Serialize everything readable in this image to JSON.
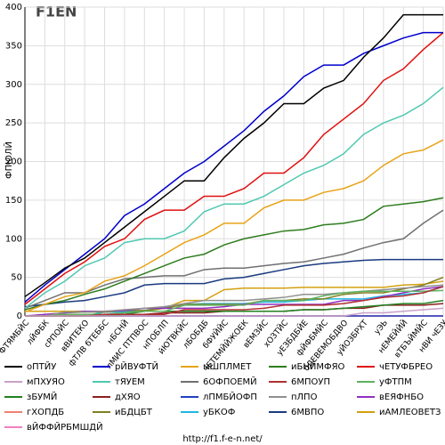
{
  "chart_data": {
    "type": "line",
    "logo": "F1EN",
    "ylabel": "ФПЮЛЙ",
    "footer": "http://f1.f-e-n.net/",
    "categories": [
      "ФТЯМБЙС",
      "лЙФБК",
      "сРПОЙС",
      "вВИТЕКО",
      "фТЛВ бТЕББС",
      "нБСНЙ",
      "лМИС ПТПВОС",
      "нПОБЛП",
      "йЮТВКЙС",
      "лБОБДБ",
      "бФУЙЙС",
      "чЕТЕМЙЙЖОЕК",
      "вЕМЗЙС",
      "хОЗТЙС",
      "уЕЗБДБЙЕ",
      "фЙФБМЙС",
      "бДЕВЕМОБДВО",
      "уЙОЗБРХТ",
      "уЭЬ",
      "нЕМЕЙЙЙ",
      "вТБЪЙМЙС",
      "нВИ чЕЗУ"
    ],
    "ylim": [
      0,
      400
    ],
    "yticks": [
      0,
      50,
      100,
      150,
      200,
      250,
      300,
      350,
      400
    ],
    "grid": true,
    "series": [
      {
        "name": "оПТЙУ",
        "color": "#000000",
        "values": [
          25,
          43,
          62,
          75,
          95,
          115,
          135,
          155,
          175,
          175,
          205,
          230,
          250,
          275,
          275,
          295,
          305,
          335,
          360,
          390,
          390,
          390
        ]
      },
      {
        "name": "рЙВУФТЙ",
        "color": "#0000cc",
        "values": [
          18,
          40,
          60,
          80,
          100,
          130,
          145,
          165,
          185,
          200,
          220,
          240,
          265,
          285,
          310,
          325,
          325,
          340,
          350,
          360,
          367,
          367
        ]
      },
      {
        "name": "мШПЛМЕТ",
        "color": "#e8a317",
        "values": [
          5,
          15,
          25,
          30,
          45,
          52,
          65,
          80,
          95,
          105,
          120,
          120,
          140,
          150,
          150,
          160,
          165,
          175,
          195,
          210,
          215,
          228
        ]
      },
      {
        "name": "иБНЙМФЯО",
        "color": "#2e7d1e",
        "values": [
          8,
          15,
          20,
          28,
          35,
          45,
          55,
          65,
          75,
          80,
          92,
          100,
          105,
          110,
          112,
          118,
          120,
          125,
          142,
          145,
          148,
          153
        ]
      },
      {
        "name": "чЕТУФБРЕО",
        "color": "#e01010",
        "values": [
          15,
          35,
          55,
          70,
          90,
          100,
          125,
          137,
          137,
          155,
          155,
          165,
          185,
          185,
          205,
          235,
          255,
          275,
          305,
          320,
          345,
          367
        ]
      },
      {
        "name": "мПХУЯО",
        "color": "#c8a0c8",
        "values": [
          0,
          0,
          0,
          0,
          0,
          0,
          0,
          0,
          0,
          0,
          0,
          0,
          0,
          0,
          0,
          0,
          0,
          4,
          4,
          6,
          8,
          10
        ]
      },
      {
        "name": "тЯУЕМ",
        "color": "#50c8b0",
        "values": [
          10,
          30,
          45,
          65,
          75,
          95,
          100,
          100,
          110,
          135,
          145,
          145,
          155,
          170,
          185,
          195,
          210,
          235,
          250,
          260,
          275,
          296
        ]
      },
      {
        "name": "6ОФПОЕМЙ",
        "color": "#707070",
        "values": [
          10,
          20,
          30,
          30,
          40,
          48,
          50,
          52,
          52,
          60,
          62,
          62,
          65,
          68,
          70,
          75,
          80,
          88,
          95,
          100,
          120,
          137
        ]
      },
      {
        "name": "6МПОУП",
        "color": "#b03030",
        "values": [
          0,
          0,
          0,
          0,
          2,
          2,
          2,
          2,
          8,
          8,
          8,
          8,
          10,
          14,
          14,
          14,
          16,
          20,
          24,
          26,
          30,
          38
        ]
      },
      {
        "name": "уФТПМ",
        "color": "#60b060",
        "values": [
          0,
          0,
          2,
          2,
          2,
          4,
          6,
          6,
          14,
          14,
          14,
          14,
          20,
          20,
          20,
          26,
          30,
          32,
          32,
          32,
          32,
          33
        ]
      },
      {
        "name": "зБУМЙ",
        "color": "#208020",
        "values": [
          0,
          0,
          0,
          0,
          0,
          2,
          6,
          6,
          6,
          6,
          6,
          6,
          6,
          6,
          8,
          8,
          10,
          12,
          14,
          16,
          16,
          20
        ]
      },
      {
        "name": "дХЯО",
        "color": "#8b2020",
        "values": [
          0,
          0,
          0,
          0,
          2,
          2,
          2,
          4,
          4,
          4,
          6,
          6,
          6,
          6,
          8,
          8,
          10,
          10,
          14,
          14,
          14,
          16
        ]
      },
      {
        "name": "лПМБЙОФП",
        "color": "#2040c0",
        "values": [
          0,
          0,
          0,
          0,
          0,
          0,
          0,
          0,
          0,
          0,
          0,
          0,
          0,
          0,
          0,
          0,
          0,
          0,
          0,
          0,
          0,
          0
        ]
      },
      {
        "name": "пЛПО",
        "color": "#909090",
        "values": [
          0,
          0,
          5,
          5,
          6,
          8,
          10,
          12,
          16,
          20,
          20,
          20,
          22,
          24,
          28,
          28,
          30,
          32,
          34,
          36,
          38,
          40
        ]
      },
      {
        "name": "вЕЯФНБО",
        "color": "#9030c0",
        "values": [
          0,
          2,
          4,
          6,
          6,
          7,
          10,
          10,
          10,
          10,
          12,
          15,
          15,
          15,
          15,
          15,
          20,
          20,
          25,
          30,
          35,
          38
        ]
      },
      {
        "name": "гХОПДБ",
        "color": "#f08070",
        "values": [
          0,
          0,
          0,
          0,
          0,
          0,
          0,
          0,
          0,
          0,
          0,
          0,
          0,
          0,
          0,
          0,
          0,
          0,
          0,
          0,
          0,
          0
        ]
      },
      {
        "name": "иБДЦБТ",
        "color": "#808020",
        "values": [
          0,
          0,
          4,
          5,
          5,
          7,
          7,
          10,
          15,
          15,
          15,
          15,
          20,
          20,
          22,
          22,
          28,
          30,
          30,
          35,
          40,
          50
        ]
      },
      {
        "name": "уБКОФ",
        "color": "#20b8e0",
        "values": [
          0,
          0,
          0,
          0,
          5,
          5,
          7,
          12,
          15,
          16,
          16,
          16,
          18,
          18,
          20,
          22,
          22,
          22,
          26,
          28,
          30,
          38
        ]
      },
      {
        "name": "6МВПО",
        "color": "#1a3a80",
        "values": [
          12,
          15,
          18,
          20,
          25,
          30,
          40,
          42,
          42,
          42,
          48,
          50,
          55,
          60,
          65,
          68,
          70,
          72,
          73,
          73,
          73,
          73
        ]
      },
      {
        "name": "иАМЛЕОВЕТЗ",
        "color": "#d4a010",
        "values": [
          6,
          6,
          6,
          6,
          6,
          6,
          6,
          10,
          20,
          20,
          34,
          36,
          36,
          36,
          37,
          37,
          37,
          37,
          37,
          40,
          41,
          45
        ]
      },
      {
        "name": "вЙФФЙРБМШДЙ",
        "color": "#f080c0",
        "values": [
          0,
          0,
          0,
          0,
          0,
          0,
          0,
          0,
          0,
          0,
          0,
          0,
          0,
          0,
          0,
          0,
          0,
          0,
          0,
          0,
          0,
          0
        ]
      }
    ]
  }
}
